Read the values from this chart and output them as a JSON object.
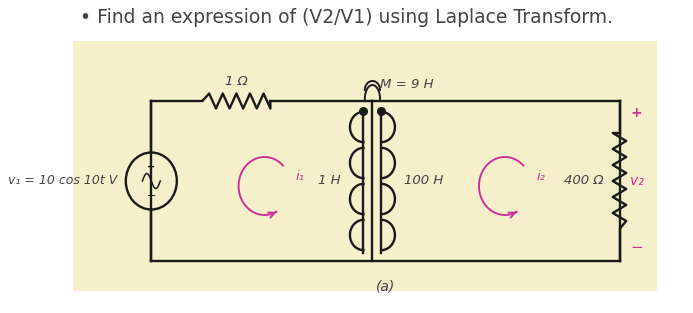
{
  "title": "Find an expression of (V2/V1) using Laplace Transform.",
  "title_bullet": "• ",
  "background_color": "#f5efcc",
  "page_background": "#ffffff",
  "text_color": "#444444",
  "circuit_label": "(a)",
  "source_label": "v₁ = 10 cos 10t V",
  "resistor1_label": "1 Ω",
  "mutual_label": "M = 9 H",
  "inductor1_label": "1 H",
  "inductor2_label": "100 H",
  "resistor2_label": "400 Ω",
  "i1_label": "i₁",
  "i2_label": "i₂",
  "v2_label": "v₂",
  "plus_label": "+",
  "minus_label": "−",
  "arrow_color": "#cc3399",
  "circuit_color": "#1a1a1a",
  "font_size_title": 13.5,
  "font_size_labels": 9,
  "label_color": "#444444",
  "v2_color": "#cc3399",
  "pm_color": "#cc3399"
}
